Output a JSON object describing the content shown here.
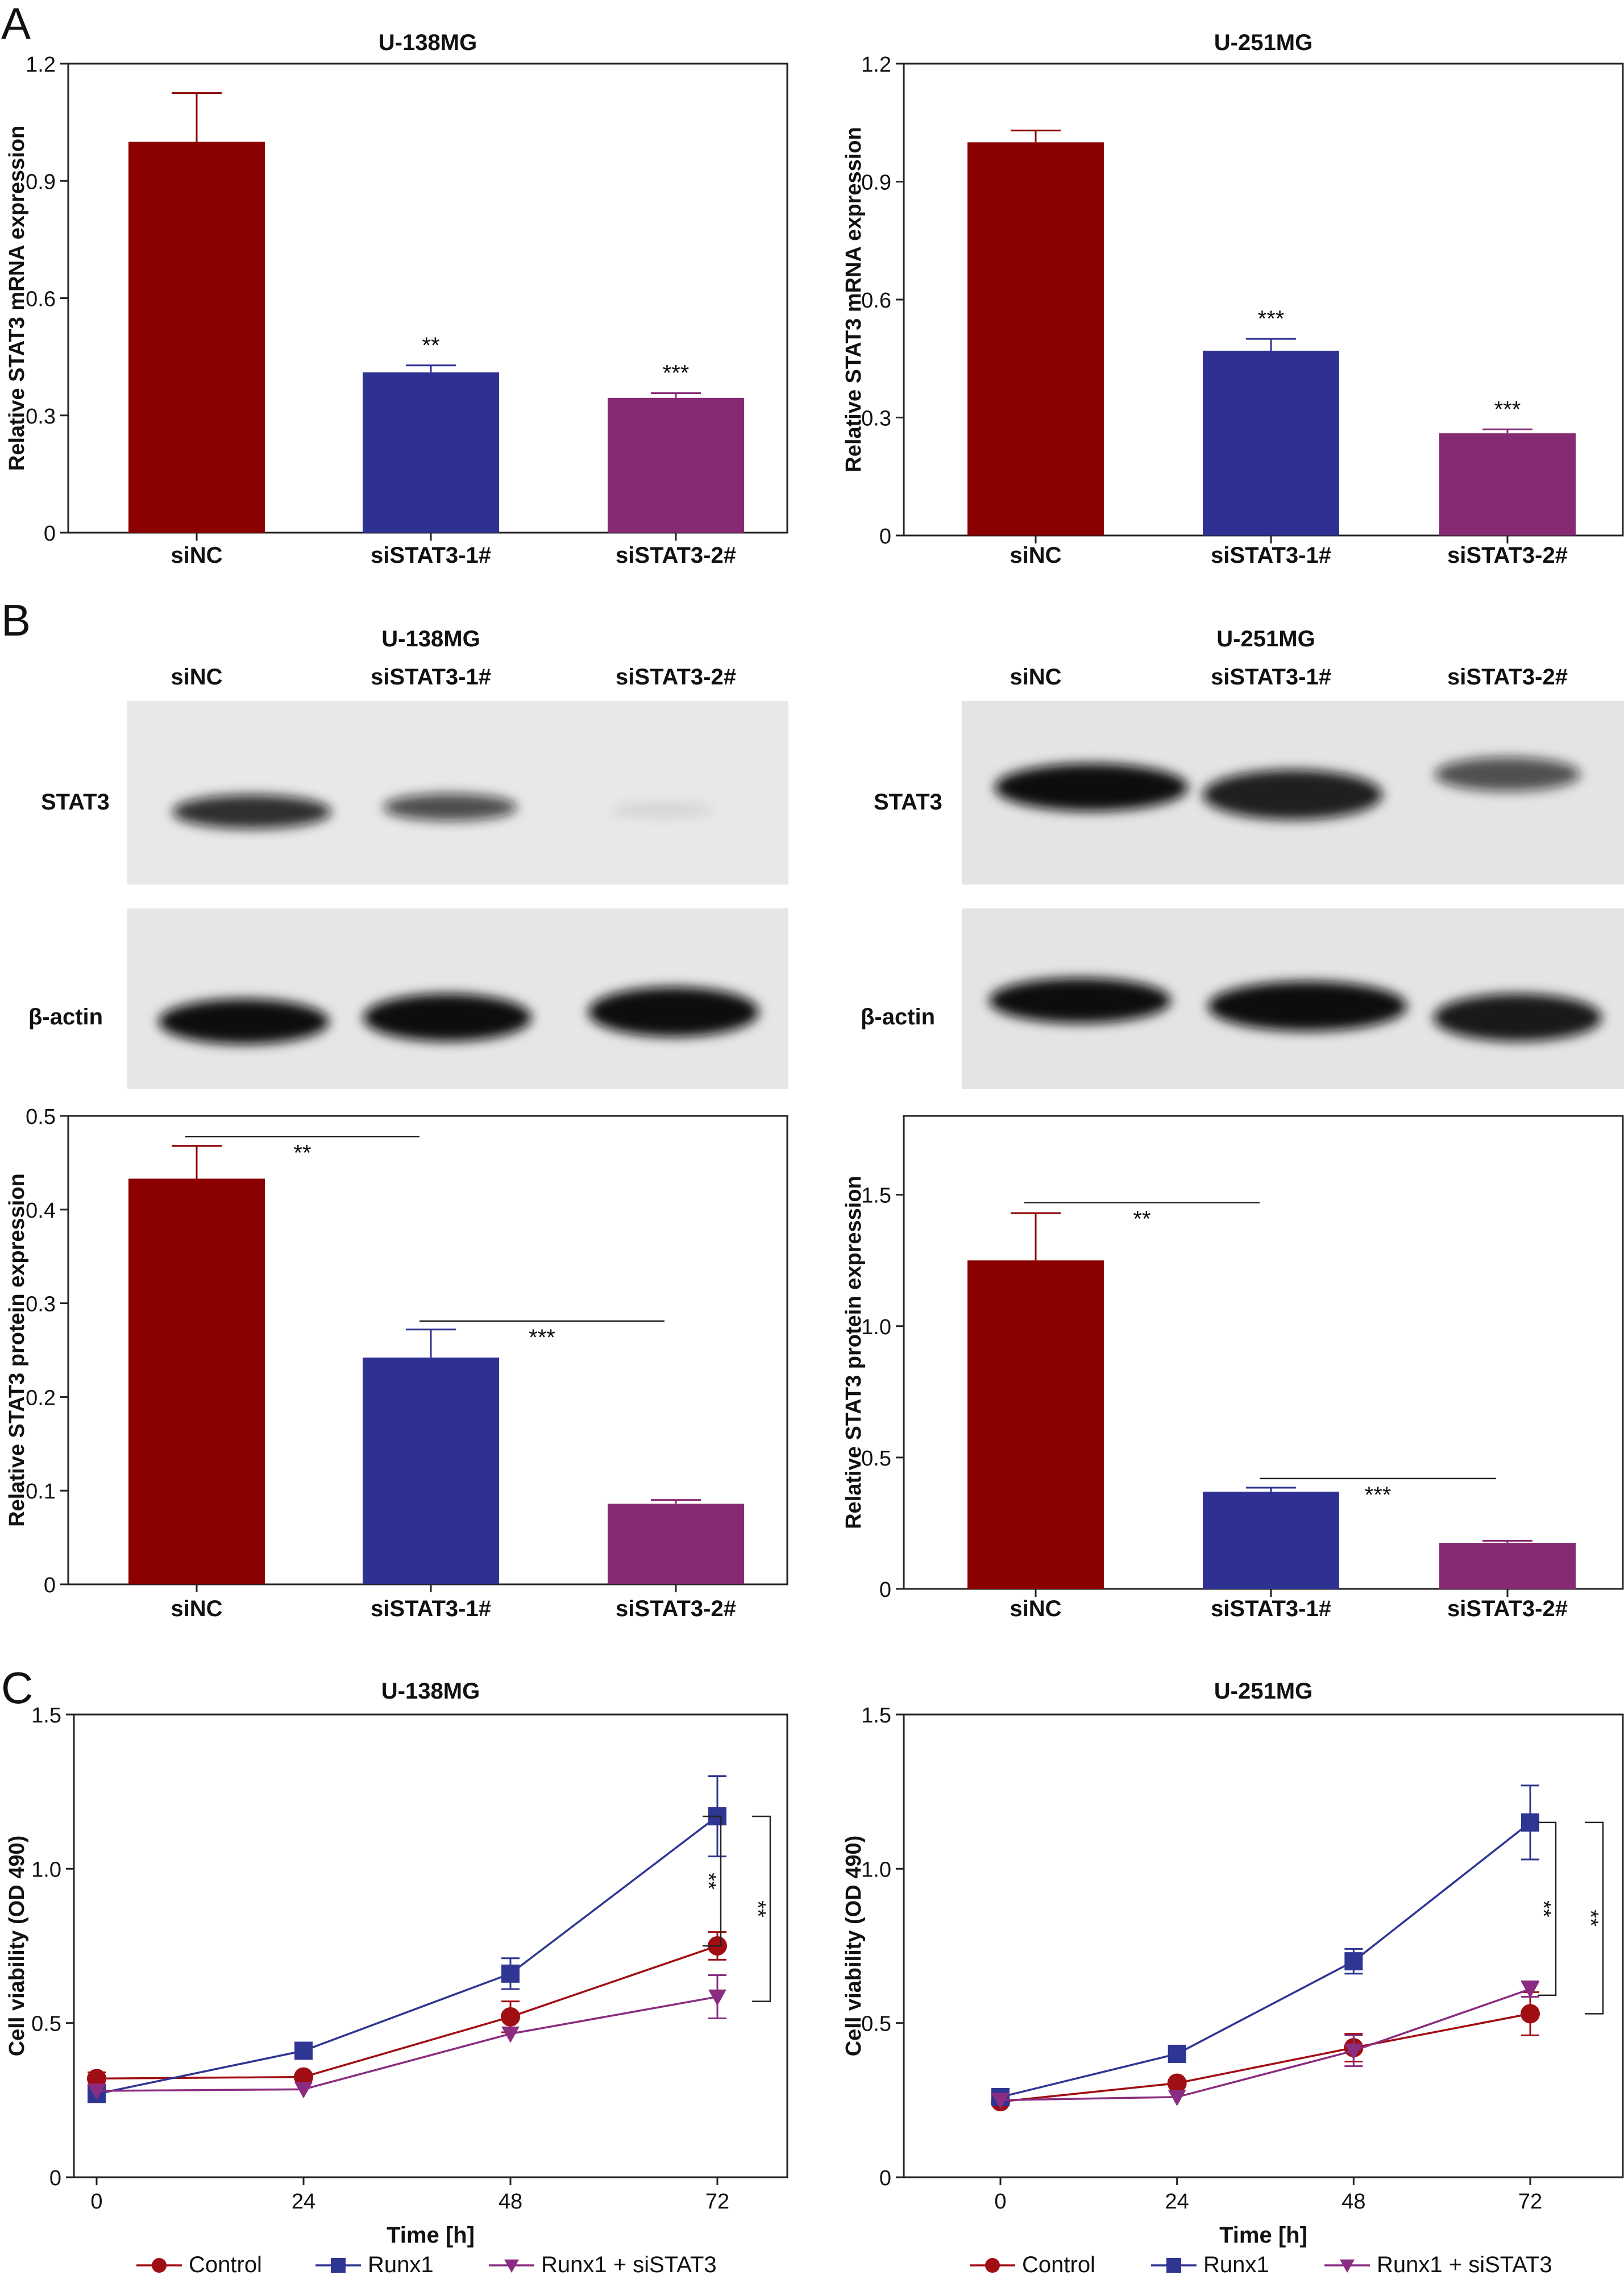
{
  "panels": [
    {
      "letter": "A"
    },
    {
      "letter": "B"
    },
    {
      "letter": "C"
    }
  ],
  "colors": {
    "siNC": "#8b0000",
    "siSTAT3_1": "#2e3192",
    "siSTAT3_2": "#872a74",
    "control": "#a00d12",
    "runx1": "#2e3592",
    "runx1_sistat3": "#8a2c80",
    "axis": "#222222"
  },
  "western": {
    "left": {
      "title": "U-138MG",
      "lanes": [
        "siNC",
        "siSTAT3-1#",
        "siSTAT3-2#"
      ],
      "row_labels": [
        "STAT3",
        "β-actin"
      ],
      "stat3_intensity": [
        0.85,
        0.72,
        0.08
      ],
      "actin_intensity": [
        1.0,
        1.0,
        1.0
      ]
    },
    "right": {
      "title": "U-251MG",
      "lanes": [
        "siNC",
        "siSTAT3-1#",
        "siSTAT3-2#"
      ],
      "row_labels": [
        "STAT3",
        "β-actin"
      ],
      "stat3_intensity": [
        1.0,
        0.92,
        0.7
      ],
      "actin_intensity": [
        1.0,
        1.0,
        0.95
      ]
    }
  },
  "chart_data": [
    {
      "id": "A-left",
      "type": "bar",
      "title": "U-138MG",
      "xlabel": "",
      "ylabel": "Relative STAT3 mRNA expression",
      "categories": [
        "siNC",
        "siSTAT3-1#",
        "siSTAT3-2#"
      ],
      "values": [
        1.0,
        0.41,
        0.345
      ],
      "errors": [
        0.125,
        0.018,
        0.012
      ],
      "sig": [
        "",
        "**",
        "***"
      ],
      "ylim": [
        0,
        1.2
      ],
      "yticks": [
        "0",
        "0.3",
        "0.6",
        "0.9",
        "1.2"
      ],
      "ytick_values": [
        0,
        0.3,
        0.6,
        0.9,
        1.2
      ],
      "bar_colors": [
        "#8b0000",
        "#2e3192",
        "#872a74"
      ],
      "brackets": []
    },
    {
      "id": "A-right",
      "type": "bar",
      "title": "U-251MG",
      "xlabel": "",
      "ylabel": "Relative STAT3 mRNA expression",
      "categories": [
        "siNC",
        "siSTAT3-1#",
        "siSTAT3-2#"
      ],
      "values": [
        1.0,
        0.47,
        0.26
      ],
      "errors": [
        0.03,
        0.03,
        0.01
      ],
      "sig": [
        "",
        "***",
        "***"
      ],
      "ylim": [
        0,
        1.2
      ],
      "yticks": [
        "0",
        "0.3",
        "0.6",
        "0.9",
        "1.2"
      ],
      "ytick_values": [
        0,
        0.3,
        0.6,
        0.9,
        1.2
      ],
      "bar_colors": [
        "#8b0000",
        "#2e3192",
        "#872a74"
      ],
      "brackets": []
    },
    {
      "id": "B-left",
      "type": "bar",
      "title": "",
      "xlabel": "",
      "ylabel": "Relative STAT3 protein expression",
      "categories": [
        "siNC",
        "siSTAT3-1#",
        "siSTAT3-2#"
      ],
      "values": [
        0.433,
        0.242,
        0.086
      ],
      "errors": [
        0.035,
        0.03,
        0.004
      ],
      "sig": [
        "",
        "",
        ""
      ],
      "ylim": [
        0,
        0.5
      ],
      "yticks": [
        "0",
        "0.1",
        "0.2",
        "0.3",
        "0.4",
        "0.5"
      ],
      "ytick_values": [
        0,
        0.1,
        0.2,
        0.3,
        0.4,
        0.5
      ],
      "bar_colors": [
        "#8b0000",
        "#2e3192",
        "#872a74"
      ],
      "brackets": [
        {
          "from": 0,
          "to": 1,
          "y": 0.478,
          "label": "**"
        },
        {
          "from": 1,
          "to": 2,
          "y": 0.281,
          "label": "***"
        }
      ]
    },
    {
      "id": "B-right",
      "type": "bar",
      "title": "",
      "xlabel": "",
      "ylabel": "Relative STAT3 protein expression",
      "categories": [
        "siNC",
        "siSTAT3-1#",
        "siSTAT3-2#"
      ],
      "values": [
        1.25,
        0.37,
        0.175
      ],
      "errors": [
        0.18,
        0.015,
        0.008
      ],
      "sig": [
        "",
        "",
        ""
      ],
      "ylim": [
        0,
        1.8
      ],
      "yticks": [
        "0",
        "0.5",
        "1.0",
        "1.5"
      ],
      "ytick_values": [
        0,
        0.5,
        1.0,
        1.5
      ],
      "bar_colors": [
        "#8b0000",
        "#2e3192",
        "#872a74"
      ],
      "brackets": [
        {
          "from": 0,
          "to": 1,
          "y": 1.47,
          "label": "**"
        },
        {
          "from": 1,
          "to": 2,
          "y": 0.42,
          "label": "***"
        }
      ]
    },
    {
      "id": "C-left",
      "type": "line",
      "title": "U-138MG",
      "xlabel": "Time [h]",
      "ylabel": "Cell viability (OD 490)",
      "x": [
        0,
        24,
        48,
        72
      ],
      "xticks": [
        "0",
        "24",
        "48",
        "72"
      ],
      "ylim": [
        0,
        1.5
      ],
      "yticks": [
        "0",
        "0.5",
        "1.0",
        "1.5"
      ],
      "ytick_values": [
        0,
        0.5,
        1.0,
        1.5
      ],
      "series": [
        {
          "name": "Control",
          "marker": "circle",
          "color": "#a00d12",
          "values": [
            0.32,
            0.325,
            0.52,
            0.75
          ],
          "errors": [
            0.02,
            0.01,
            0.05,
            0.045
          ]
        },
        {
          "name": "Runx1",
          "marker": "square",
          "color": "#2e3592",
          "values": [
            0.27,
            0.41,
            0.66,
            1.17
          ],
          "errors": [
            0.01,
            0.01,
            0.05,
            0.13
          ]
        },
        {
          "name": "Runx1 + siSTAT3",
          "marker": "triangle-down",
          "color": "#8a2c80",
          "values": [
            0.28,
            0.285,
            0.465,
            0.585
          ],
          "errors": [
            0.01,
            0.01,
            0.01,
            0.07
          ]
        }
      ],
      "brackets_vertical": [
        {
          "from": 0.75,
          "to": 1.17,
          "label": "**"
        },
        {
          "from": 0.57,
          "to": 1.17,
          "label": "**"
        }
      ]
    },
    {
      "id": "C-right",
      "type": "line",
      "title": "U-251MG",
      "xlabel": "Time [h]",
      "ylabel": "Cell viability (OD 490)",
      "x": [
        0,
        24,
        48,
        72
      ],
      "xticks": [
        "0",
        "24",
        "48",
        "72"
      ],
      "ylim": [
        0,
        1.5
      ],
      "yticks": [
        "0",
        "0.5",
        "1.0",
        "1.5"
      ],
      "ytick_values": [
        0,
        0.5,
        1.0,
        1.5
      ],
      "series": [
        {
          "name": "Control",
          "marker": "circle",
          "color": "#a00d12",
          "values": [
            0.245,
            0.305,
            0.42,
            0.53
          ],
          "errors": [
            0.01,
            0.01,
            0.045,
            0.07
          ]
        },
        {
          "name": "Runx1",
          "marker": "square",
          "color": "#2e3592",
          "values": [
            0.26,
            0.4,
            0.7,
            1.15
          ],
          "errors": [
            0.01,
            0.01,
            0.04,
            0.12
          ]
        },
        {
          "name": "Runx1 + siSTAT3",
          "marker": "triangle-down",
          "color": "#8a2c80",
          "values": [
            0.25,
            0.26,
            0.41,
            0.61
          ],
          "errors": [
            0.01,
            0.01,
            0.05,
            0.025
          ]
        }
      ],
      "brackets_vertical": [
        {
          "from": 0.59,
          "to": 1.15,
          "label": "**"
        },
        {
          "from": 0.53,
          "to": 1.15,
          "label": "**"
        }
      ]
    }
  ]
}
